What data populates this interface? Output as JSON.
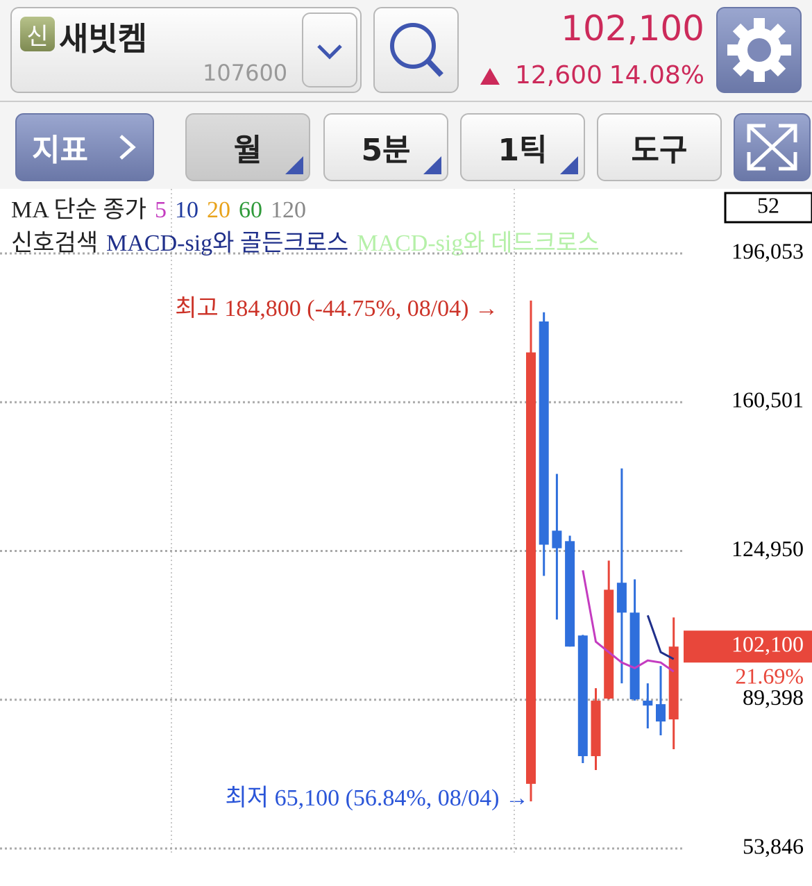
{
  "header": {
    "badge": "신",
    "name": "새빗켐",
    "code": "107600",
    "price": "102,100",
    "change": "12,600",
    "change_pct": "14.08%"
  },
  "toolbar": {
    "indicator": "지표",
    "buttons": [
      "월",
      "5분",
      "1틱",
      "도구"
    ]
  },
  "legend": {
    "ma_label": "MA 단순 종가",
    "ma_periods": [
      {
        "label": "5",
        "color": "#c43cc0"
      },
      {
        "label": "10",
        "color": "#1f3a9e"
      },
      {
        "label": "20",
        "color": "#e8a21a"
      },
      {
        "label": "60",
        "color": "#2f9a3a"
      },
      {
        "label": "120",
        "color": "#888888"
      }
    ],
    "signal_label": "신호검색",
    "signals": [
      {
        "label": "MACD-sig와 골든크로스",
        "color": "#1f2f8a"
      },
      {
        "label": "MACD-sig와 데드크로스",
        "color": "#b5f0a8"
      }
    ]
  },
  "chart_data": {
    "type": "candlestick",
    "up_color": "#e8473b",
    "down_color": "#2f6fdc",
    "ylim": [
      53846,
      196053
    ],
    "yticks": [
      {
        "value": 53846,
        "label": "53,846"
      },
      {
        "value": 89398,
        "label": "89,398"
      },
      {
        "value": 124950,
        "label": "124,950"
      },
      {
        "value": 160501,
        "label": "160,501"
      },
      {
        "value": 196053,
        "label": "196,053"
      }
    ],
    "grid": true,
    "open": [
      69300,
      179800,
      129800,
      127300,
      104750,
      75920,
      89670,
      117360,
      110220,
      89180,
      88340,
      84700
    ],
    "high": [
      184800,
      182000,
      143360,
      128600,
      104900,
      92160,
      122650,
      144680,
      118170,
      93320,
      97460,
      109060
    ],
    "low": [
      65100,
      119000,
      108560,
      102100,
      74250,
      72600,
      89500,
      93320,
      89180,
      82560,
      80900,
      77580
    ],
    "close": [
      172400,
      126450,
      125600,
      102100,
      75920,
      89180,
      115690,
      110220,
      89500,
      88010,
      84200,
      102100
    ],
    "series": [
      {
        "color": "#c43cc0",
        "values": [
          null,
          null,
          null,
          null,
          120330,
          103260,
          100780,
          98290,
          96960,
          98790,
          98290,
          96130
        ]
      },
      {
        "color": "#1f2f8a",
        "values": [
          null,
          null,
          null,
          null,
          null,
          null,
          null,
          null,
          null,
          109560,
          100780,
          99120
        ]
      }
    ],
    "annotations": {
      "high_label": "최고 184,800 (-44.75%, 08/04) →",
      "low_label": "최저 65,100 (56.84%, 08/04) →",
      "current_price": "102,100",
      "current_pct": "21.69%",
      "count": "52"
    }
  }
}
